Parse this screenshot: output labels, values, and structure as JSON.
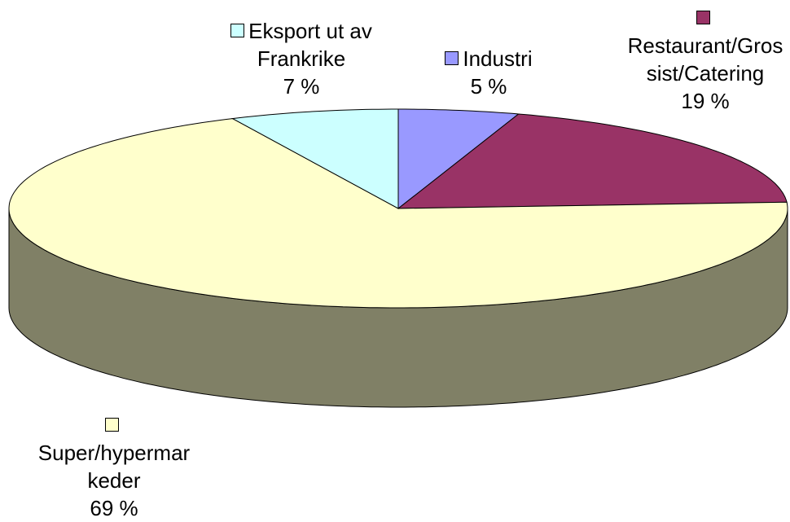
{
  "chart_data": {
    "type": "pie3d",
    "categories": [
      "Industri",
      "Restaurant/Grossist/Catering",
      "Super/hypermarkeder",
      "Eksport ut av Frankrike"
    ],
    "values": [
      5,
      19,
      69,
      7
    ],
    "value_labels": [
      "5 %",
      "19 %",
      "69 %",
      "7 %"
    ],
    "colors": [
      "#9999ff",
      "#993366",
      "#ffffcc",
      "#ccffff"
    ]
  }
}
